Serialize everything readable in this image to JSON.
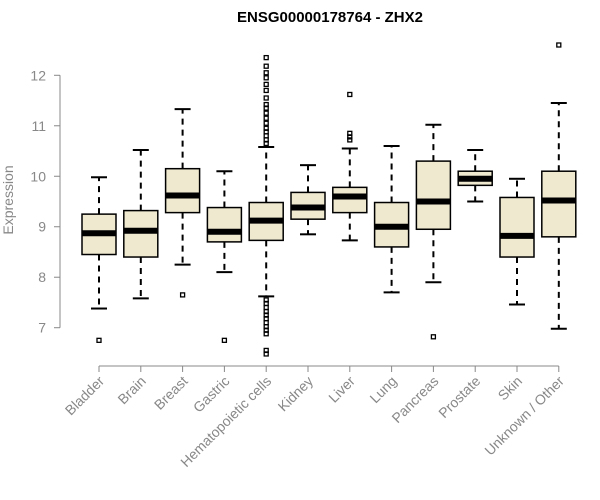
{
  "chart_data": {
    "type": "boxplot",
    "title": "ENSG00000178764 - ZHX2",
    "xlabel": "",
    "ylabel": "Expression",
    "ylim": [
      6.4,
      12.6
    ],
    "yticks": [
      7,
      8,
      9,
      10,
      11,
      12
    ],
    "box_color": "#efe9d0",
    "stroke_color": "#000000",
    "categories": [
      "Bladder",
      "Brain",
      "Breast",
      "Gastric",
      "Hematopoietic cells",
      "Kidney",
      "Liver",
      "Lung",
      "Pancreas",
      "Prostate",
      "Skin",
      "Unknown / Other"
    ],
    "boxes": [
      {
        "name": "Bladder",
        "whisker_low": 7.38,
        "q1": 8.45,
        "median": 8.87,
        "q3": 9.25,
        "whisker_high": 9.98,
        "outliers": [
          6.75
        ]
      },
      {
        "name": "Brain",
        "whisker_low": 7.58,
        "q1": 8.4,
        "median": 8.92,
        "q3": 9.32,
        "whisker_high": 10.52,
        "outliers": []
      },
      {
        "name": "Breast",
        "whisker_low": 8.25,
        "q1": 9.28,
        "median": 9.62,
        "q3": 10.15,
        "whisker_high": 11.33,
        "outliers": [
          7.65
        ]
      },
      {
        "name": "Gastric",
        "whisker_low": 8.1,
        "q1": 8.7,
        "median": 8.9,
        "q3": 9.38,
        "whisker_high": 10.1,
        "outliers": [
          6.75
        ]
      },
      {
        "name": "Hematopoietic cells",
        "whisker_low": 7.62,
        "q1": 8.73,
        "median": 9.12,
        "q3": 9.48,
        "whisker_high": 10.58,
        "outliers": [
          12.35,
          12.18,
          12.05,
          11.95,
          11.82,
          11.7,
          11.55,
          11.42,
          11.35,
          11.25,
          11.15,
          11.05,
          10.95,
          10.88,
          10.8,
          10.72,
          10.65,
          7.55,
          7.48,
          7.4,
          7.32,
          7.25,
          7.18,
          7.1,
          7.02,
          6.95,
          6.88,
          6.55,
          6.48
        ]
      },
      {
        "name": "Kidney",
        "whisker_low": 8.85,
        "q1": 9.15,
        "median": 9.38,
        "q3": 9.68,
        "whisker_high": 10.22,
        "outliers": []
      },
      {
        "name": "Liver",
        "whisker_low": 8.73,
        "q1": 9.28,
        "median": 9.6,
        "q3": 9.78,
        "whisker_high": 10.55,
        "outliers": [
          11.62,
          10.85,
          10.78,
          10.72
        ]
      },
      {
        "name": "Lung",
        "whisker_low": 7.7,
        "q1": 8.6,
        "median": 9.0,
        "q3": 9.48,
        "whisker_high": 10.6,
        "outliers": []
      },
      {
        "name": "Pancreas",
        "whisker_low": 7.9,
        "q1": 8.95,
        "median": 9.5,
        "q3": 10.3,
        "whisker_high": 11.02,
        "outliers": [
          6.82
        ]
      },
      {
        "name": "Prostate",
        "whisker_low": 9.5,
        "q1": 9.82,
        "median": 9.95,
        "q3": 10.1,
        "whisker_high": 10.52,
        "outliers": []
      },
      {
        "name": "Skin",
        "whisker_low": 7.46,
        "q1": 8.4,
        "median": 8.82,
        "q3": 9.58,
        "whisker_high": 9.95,
        "outliers": []
      },
      {
        "name": "Unknown / Other",
        "whisker_low": 6.98,
        "q1": 8.8,
        "median": 9.52,
        "q3": 10.1,
        "whisker_high": 11.45,
        "outliers": [
          12.6
        ]
      }
    ]
  }
}
